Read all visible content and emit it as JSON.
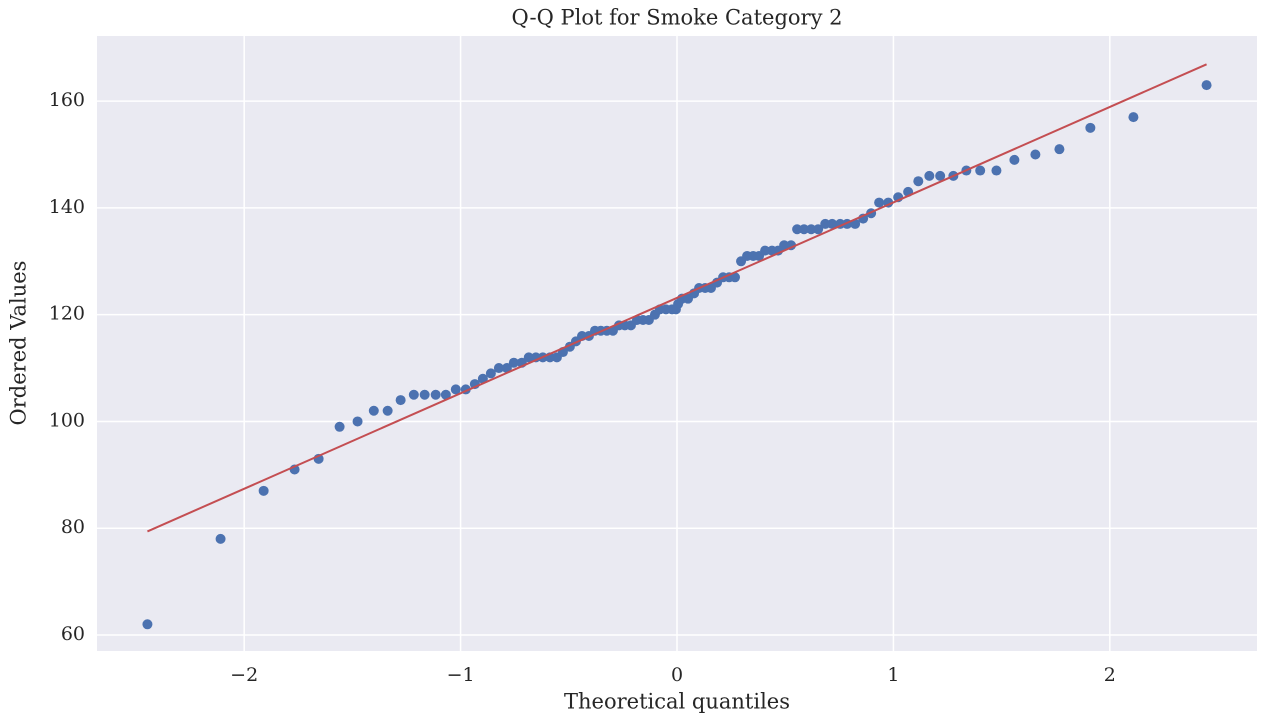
{
  "chart_data": {
    "type": "scatter",
    "title": "Q-Q Plot for Smoke Category 2",
    "x_label": "Theoretical quantiles",
    "y_label": "Ordered Values",
    "xlim": [
      -2.68,
      2.68
    ],
    "ylim": [
      57.0,
      172.2
    ],
    "xticks": [
      {
        "value": -2,
        "label": "−2"
      },
      {
        "value": -1,
        "label": "−1"
      },
      0,
      1,
      2
    ],
    "yticks": [
      60,
      80,
      100,
      120,
      140,
      160
    ],
    "grid": true,
    "series": [
      {
        "color": "#4c72b0",
        "x": [
          -2.447,
          -2.109,
          -1.91,
          -1.767,
          -1.656,
          -1.559,
          -1.476,
          -1.401,
          -1.337,
          -1.277,
          -1.216,
          -1.166,
          -1.115,
          -1.068,
          -1.022,
          -0.976,
          -0.934,
          -0.897,
          -0.86,
          -0.823,
          -0.786,
          -0.754,
          -0.717,
          -0.685,
          -0.652,
          -0.62,
          -0.587,
          -0.555,
          -0.527,
          -0.495,
          -0.467,
          -0.439,
          -0.407,
          -0.379,
          -0.352,
          -0.324,
          -0.296,
          -0.268,
          -0.241,
          -0.213,
          -0.185,
          -0.157,
          -0.13,
          -0.102,
          -0.079,
          -0.051,
          -0.023,
          -0.005,
          0.005,
          0.023,
          0.051,
          0.079,
          0.102,
          0.13,
          0.157,
          0.185,
          0.213,
          0.241,
          0.268,
          0.296,
          0.324,
          0.352,
          0.379,
          0.407,
          0.439,
          0.467,
          0.495,
          0.527,
          0.555,
          0.587,
          0.62,
          0.652,
          0.685,
          0.717,
          0.754,
          0.786,
          0.823,
          0.86,
          0.897,
          0.934,
          0.976,
          1.022,
          1.068,
          1.115,
          1.166,
          1.216,
          1.277,
          1.337,
          1.401,
          1.476,
          1.559,
          1.656,
          1.767,
          1.91,
          2.109,
          2.447
        ],
        "values": [
          62,
          78,
          87,
          91,
          93,
          99,
          100,
          102,
          102,
          104,
          105,
          105,
          105,
          105,
          106,
          106,
          107,
          108,
          109,
          110,
          110,
          111,
          111,
          112,
          112,
          112,
          112,
          112,
          113,
          114,
          115,
          116,
          116,
          117,
          117,
          117,
          117,
          118,
          118,
          118,
          119,
          119,
          119,
          120,
          121,
          121,
          121,
          121,
          122,
          123,
          123,
          124,
          125,
          125,
          125,
          126,
          127,
          127,
          127,
          130,
          131,
          131,
          131,
          132,
          132,
          132,
          133,
          133,
          136,
          136,
          136,
          136,
          137,
          137,
          137,
          137,
          137,
          138,
          139,
          141,
          141,
          142,
          143,
          145,
          146,
          146,
          146,
          147,
          147,
          147,
          149,
          150,
          151,
          155,
          157,
          163
        ]
      }
    ],
    "fit_line": {
      "color": "#c44e52",
      "x": [
        -2.447,
        2.447
      ],
      "values": [
        79.4,
        166.9
      ]
    }
  }
}
